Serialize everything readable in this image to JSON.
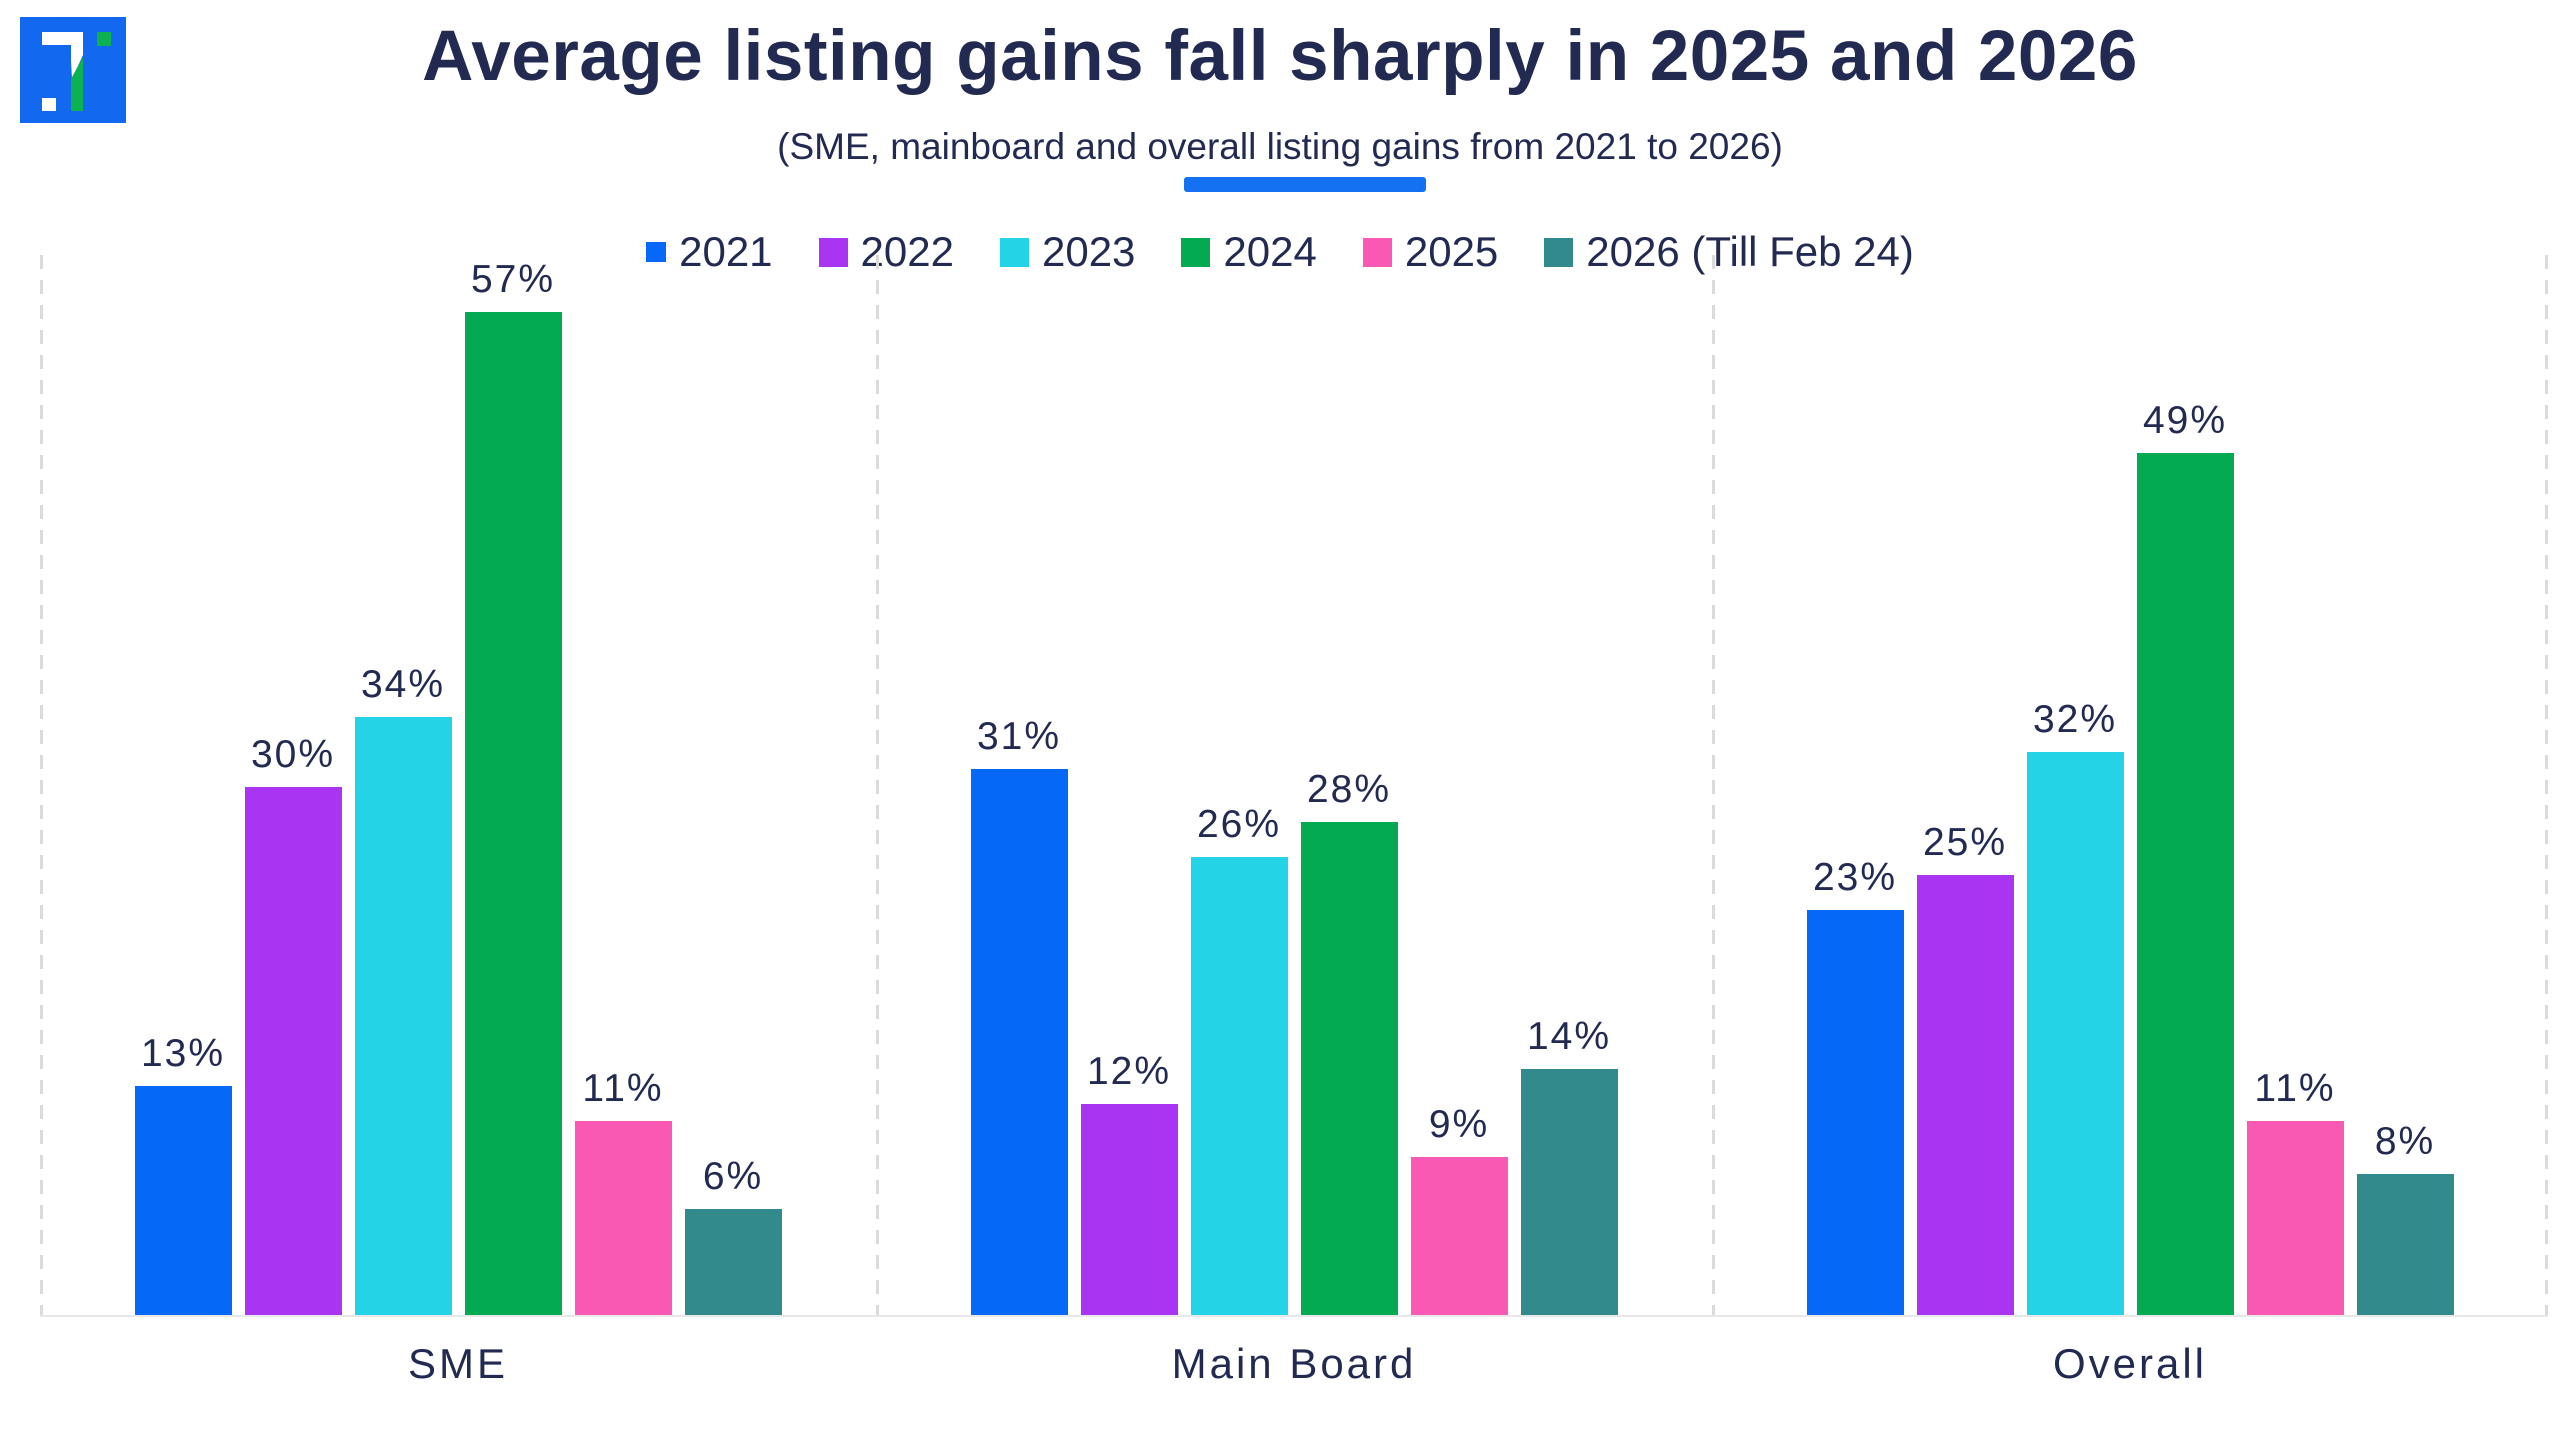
{
  "header": {
    "title": "Average listing gains fall sharply in 2025 and 2026",
    "subtitle": "(SME, mainboard and overall listing gains from 2021 to 2026)"
  },
  "branding": {
    "logo_bg_color": "#1268EF",
    "logo_green_color": "#0CB150",
    "accent_underline_color": "#1371F2"
  },
  "style": {
    "text_color": "#232A52",
    "gridline_color": "#DBDBDB",
    "baseline_color": "#E8E8E8"
  },
  "chart_data": {
    "type": "bar",
    "title": "Average listing gains fall sharply in 2025 and 2026",
    "subtitle": "(SME, mainboard and overall listing gains from 2021 to 2026)",
    "categories": [
      "SME",
      "Main Board",
      "Overall"
    ],
    "series": [
      {
        "name": "2021",
        "color": "#0668F7",
        "values": [
          13,
          31,
          23
        ]
      },
      {
        "name": "2022",
        "color": "#A935F2",
        "values": [
          30,
          12,
          25
        ]
      },
      {
        "name": "2023",
        "color": "#24D4E6",
        "values": [
          34,
          26,
          32
        ]
      },
      {
        "name": "2024",
        "color": "#04AA52",
        "values": [
          57,
          28,
          49
        ]
      },
      {
        "name": "2025",
        "color": "#FA59B3",
        "values": [
          11,
          9,
          11
        ]
      },
      {
        "name": "2026 (Till Feb 24)",
        "color": "#338A8C",
        "values": [
          6,
          14,
          8
        ]
      }
    ],
    "value_suffix": "%",
    "ylim": [
      0,
      60
    ],
    "grid": "vertical dashed separators between category groups",
    "legend_position": "top-center",
    "data_labels": "above each bar"
  }
}
